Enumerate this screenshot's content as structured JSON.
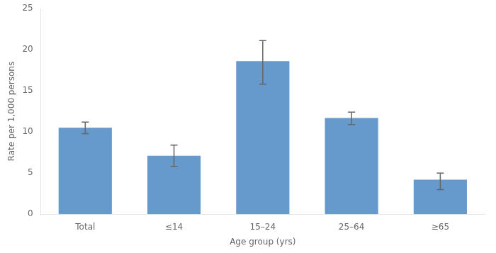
{
  "chart_data": {
    "type": "bar",
    "xlabel": "Age group (yrs)",
    "ylabel": "Rate per 1,000 persons",
    "categories": [
      "Total",
      "≤14",
      "15–24",
      "25–64",
      "≥65"
    ],
    "values": [
      10.5,
      7.1,
      18.6,
      11.7,
      4.2
    ],
    "errors_upper": [
      0.7,
      1.3,
      2.5,
      0.7,
      0.8
    ],
    "errors_lower": [
      0.7,
      1.3,
      2.8,
      0.8,
      1.2
    ],
    "color": "#6699cc",
    "ylim": [
      0,
      25
    ],
    "yticks": [
      0,
      5,
      10,
      15,
      20,
      25
    ],
    "grid": false
  }
}
